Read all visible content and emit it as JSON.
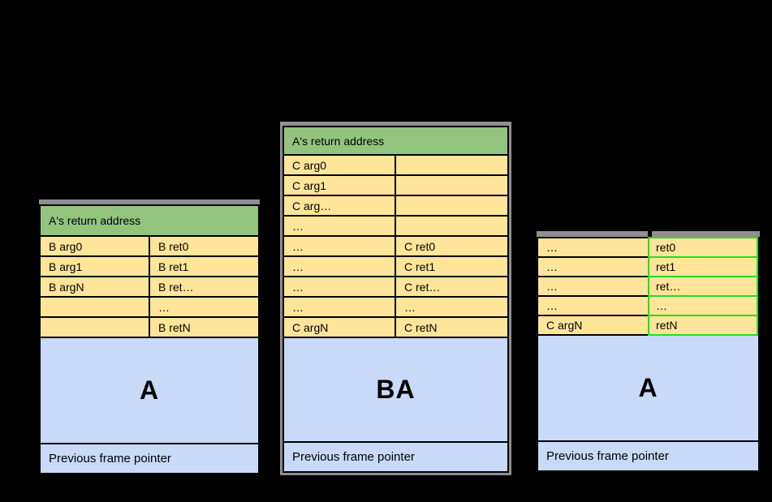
{
  "background": "#000000",
  "colors": {
    "background": "#000000",
    "backing_gray": "#8f8f8f",
    "border_black": "#000000",
    "header_green": "#93c47d",
    "cell_yellow": "#ffe599",
    "body_blue": "#c9daf8",
    "highlight_green": "#25dd20"
  },
  "frames": [
    {
      "header": "A's return address",
      "rows": [
        {
          "left": "B arg0",
          "right": "B ret0"
        },
        {
          "left": "B arg1",
          "right": "B ret1"
        },
        {
          "left": "B argN",
          "right": "B ret…"
        },
        {
          "left": "",
          "right": "…"
        },
        {
          "left": "",
          "right": "B retN"
        }
      ],
      "body_label": "A",
      "footer": "Previous frame pointer"
    },
    {
      "header": "A's return address",
      "rows": [
        {
          "left": "C arg0",
          "right": ""
        },
        {
          "left": "C arg1",
          "right": ""
        },
        {
          "left": "C arg…",
          "right": ""
        },
        {
          "left": "…",
          "right": ""
        },
        {
          "left": "…",
          "right": "C ret0"
        },
        {
          "left": "…",
          "right": "C ret1"
        },
        {
          "left": "…",
          "right": "C ret…"
        },
        {
          "left": "…",
          "right": "…"
        },
        {
          "left": "C argN",
          "right": "C retN"
        }
      ],
      "body_label": "BA",
      "footer": "Previous frame pointer"
    },
    {
      "rows": [
        {
          "left": "…",
          "right": "ret0"
        },
        {
          "left": "…",
          "right": "ret1"
        },
        {
          "left": "…",
          "right": "ret…"
        },
        {
          "left": "…",
          "right": "…"
        },
        {
          "left": "C argN",
          "right": "retN"
        }
      ],
      "body_label": "A",
      "footer": "Previous frame pointer"
    }
  ]
}
